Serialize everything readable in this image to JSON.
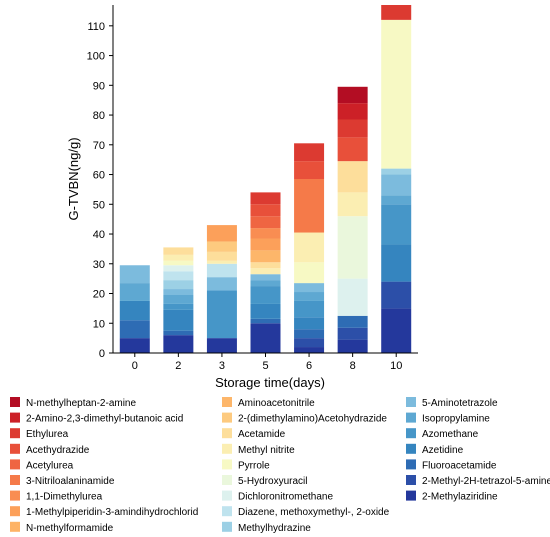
{
  "chart_data": {
    "type": "bar",
    "stacked": true,
    "xlabel": "Storage time(days)",
    "ylabel": "G-TVBN(ng/g)",
    "categories": [
      "0",
      "2",
      "3",
      "5",
      "6",
      "8",
      "10"
    ],
    "ylim": [
      0,
      117
    ],
    "yticks": [
      0,
      10,
      20,
      30,
      40,
      50,
      60,
      70,
      80,
      90,
      100,
      110
    ],
    "grid": false,
    "legend_position": "bottom",
    "series": [
      {
        "name": "2-Methylaziridine",
        "color": "#24389c",
        "values": [
          5,
          6,
          5,
          10,
          2,
          4.5,
          15
        ]
      },
      {
        "name": "2-Methyl-2H-tetrazol-5-amine",
        "color": "#2c4fa8",
        "values": [
          0,
          0,
          0,
          0,
          3,
          4,
          9
        ]
      },
      {
        "name": "Fluoroacetamide",
        "color": "#2e6cb4",
        "values": [
          6,
          1.5,
          0,
          1.5,
          3,
          4,
          0
        ]
      },
      {
        "name": "Azetidine",
        "color": "#3585bf",
        "values": [
          6.5,
          7,
          0,
          5,
          4,
          0,
          12.5
        ]
      },
      {
        "name": "Azomethane",
        "color": "#4696c8",
        "values": [
          0,
          2,
          16,
          6,
          5.5,
          0,
          13.5
        ]
      },
      {
        "name": "Isopropylamine",
        "color": "#5ea8d2",
        "values": [
          6,
          3,
          0,
          2,
          3,
          0,
          3
        ]
      },
      {
        "name": "5-Aminotetrazole",
        "color": "#7cbbdd",
        "values": [
          6,
          2,
          4.5,
          2,
          3,
          0,
          7
        ]
      },
      {
        "name": "Methylhydrazine",
        "color": "#9cd0e5",
        "values": [
          0,
          3,
          0,
          0,
          0,
          0,
          2
        ]
      },
      {
        "name": "Diazene, methoxymethyl-, 2-oxide",
        "color": "#bfe3ee",
        "values": [
          0,
          3,
          4.5,
          0,
          0,
          0,
          0
        ]
      },
      {
        "name": "Dichloronitromethane",
        "color": "#ddf1ee",
        "values": [
          0,
          2,
          0,
          0,
          0,
          12.5,
          0
        ]
      },
      {
        "name": "5-Hydroxyuracil",
        "color": "#eaf7dc",
        "values": [
          0,
          0,
          0,
          0,
          0,
          21,
          0
        ]
      },
      {
        "name": "Pyrrole",
        "color": "#f7f9c4",
        "values": [
          0,
          1.5,
          0,
          0,
          7,
          0,
          50
        ]
      },
      {
        "name": "Methyl nitrite",
        "color": "#fbeeb2",
        "values": [
          0,
          2,
          1,
          2,
          10,
          8,
          0
        ]
      },
      {
        "name": "Acetamide",
        "color": "#fdde9b",
        "values": [
          0,
          2.5,
          3,
          2,
          0,
          10.5,
          0
        ]
      },
      {
        "name": "2-(dimethylamino)Acetohydrazide",
        "color": "#fdca7f",
        "values": [
          0,
          0,
          3.5,
          0,
          0,
          0,
          0
        ]
      },
      {
        "name": "Aminoacetonitrile",
        "color": "#fdb66a",
        "values": [
          0,
          0,
          0,
          4,
          0,
          0,
          0
        ]
      },
      {
        "name": "N-methylformamide",
        "color": "#fdb366",
        "values": [
          0,
          0,
          0,
          0,
          0,
          0,
          0
        ]
      },
      {
        "name": "1-Methylpiperidin-3-amindihydrochlorid",
        "color": "#fca05a",
        "values": [
          0,
          0,
          5.5,
          4,
          0,
          0,
          0
        ]
      },
      {
        "name": "1,1-Dimethylurea",
        "color": "#f98d52",
        "values": [
          0,
          0,
          0,
          3.5,
          0,
          0,
          0
        ]
      },
      {
        "name": "3-Nitriloalaninamide",
        "color": "#f57a49",
        "values": [
          0,
          0,
          0,
          0,
          18,
          0,
          0
        ]
      },
      {
        "name": "Acetylurea",
        "color": "#ef6542",
        "values": [
          0,
          0,
          0,
          4,
          0,
          0,
          0
        ]
      },
      {
        "name": "Acethydrazide",
        "color": "#e8503a",
        "values": [
          0,
          0,
          0,
          4,
          6,
          8,
          0
        ]
      },
      {
        "name": "Ethylurea",
        "color": "#dc3a31",
        "values": [
          0,
          0,
          0,
          4,
          6,
          6,
          5
        ]
      },
      {
        "name": "2-Amino-2,3-dimethyl-butanoic acid",
        "color": "#cc2027",
        "values": [
          0,
          0,
          0,
          0,
          0,
          5.5,
          0
        ]
      },
      {
        "name": "N-methylheptan-2-amine",
        "color": "#b30d23",
        "values": [
          0,
          0,
          0,
          0,
          0,
          5.5,
          0
        ]
      }
    ],
    "legend_columns": [
      [
        "N-methylheptan-2-amine",
        "2-Amino-2,3-dimethyl-butanoic acid",
        "Ethylurea",
        "Acethydrazide",
        "Acetylurea",
        "3-Nitriloalaninamide",
        "1,1-Dimethylurea",
        "1-Methylpiperidin-3-amindihydrochlorid",
        "N-methylformamide"
      ],
      [
        "Aminoacetonitrile",
        "2-(dimethylamino)Acetohydrazide",
        "Acetamide",
        "Methyl nitrite",
        "Pyrrole",
        "5-Hydroxyuracil",
        "Dichloronitromethane",
        "Diazene, methoxymethyl-, 2-oxide",
        "Methylhydrazine"
      ],
      [
        "5-Aminotetrazole",
        "Isopropylamine",
        "Azomethane",
        "Azetidine",
        "Fluoroacetamide",
        "2-Methyl-2H-tetrazol-5-amine",
        "2-Methylaziridine"
      ]
    ]
  }
}
